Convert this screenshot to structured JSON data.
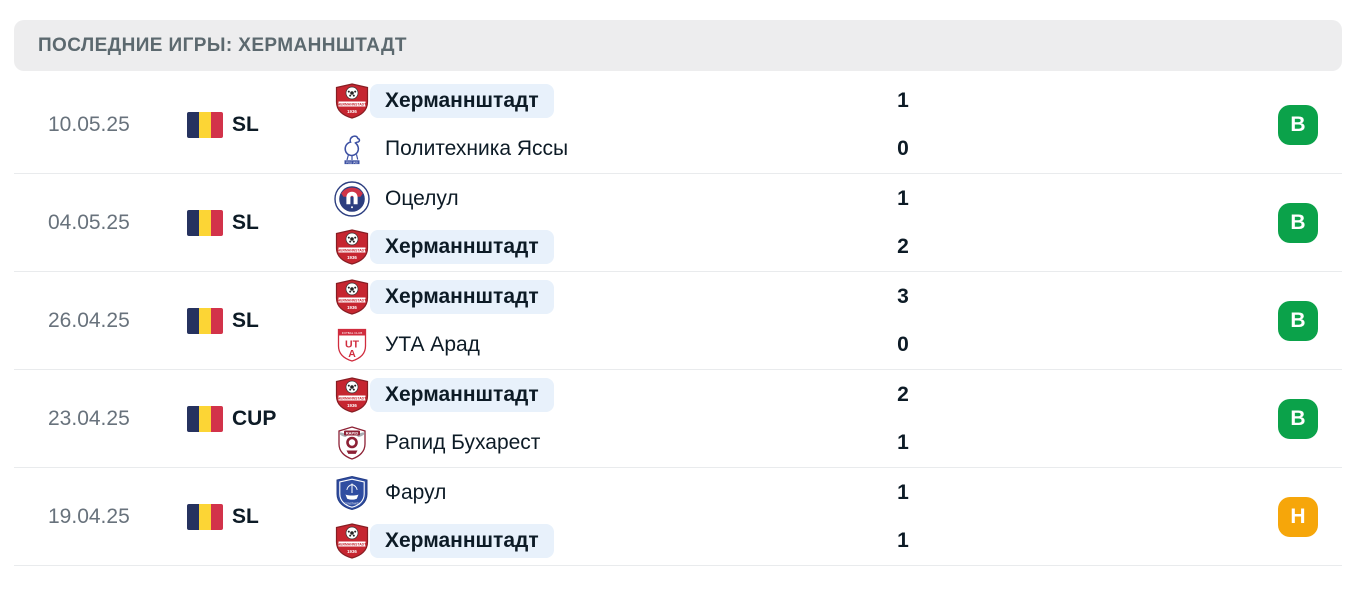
{
  "header": {
    "title": "ПОСЛЕДНИЕ ИГРЫ: ХЕРМАННШТАДТ"
  },
  "colors": {
    "win_badge": "#0ba24a",
    "draw_badge": "#f6a60a",
    "highlight_bg": "#e8f1fb",
    "header_bg": "#ededee",
    "flag_blue": "#26325f",
    "flag_yellow": "#fcd535",
    "flag_red": "#d2334a"
  },
  "matches": [
    {
      "date": "10.05.25",
      "competition": "SL",
      "competition_flag": "romania-flag",
      "home": {
        "name": "Херманнштадт",
        "logo": "hermannstadt",
        "highlighted": true
      },
      "away": {
        "name": "Политехника Яссы",
        "logo": "poli-iasi",
        "highlighted": false
      },
      "home_score": "1",
      "away_score": "0",
      "result": {
        "label": "В",
        "type": "win"
      }
    },
    {
      "date": "04.05.25",
      "competition": "SL",
      "competition_flag": "romania-flag",
      "home": {
        "name": "Оцелул",
        "logo": "otelul",
        "highlighted": false
      },
      "away": {
        "name": "Херманнштадт",
        "logo": "hermannstadt",
        "highlighted": true
      },
      "home_score": "1",
      "away_score": "2",
      "result": {
        "label": "В",
        "type": "win"
      }
    },
    {
      "date": "26.04.25",
      "competition": "SL",
      "competition_flag": "romania-flag",
      "home": {
        "name": "Херманнштадт",
        "logo": "hermannstadt",
        "highlighted": true
      },
      "away": {
        "name": "УТА Арад",
        "logo": "uta-arad",
        "highlighted": false
      },
      "home_score": "3",
      "away_score": "0",
      "result": {
        "label": "В",
        "type": "win"
      }
    },
    {
      "date": "23.04.25",
      "competition": "CUP",
      "competition_flag": "romania-flag",
      "home": {
        "name": "Херманнштадт",
        "logo": "hermannstadt",
        "highlighted": true
      },
      "away": {
        "name": "Рапид Бухарест",
        "logo": "rapid-bucharest",
        "highlighted": false
      },
      "home_score": "2",
      "away_score": "1",
      "result": {
        "label": "В",
        "type": "win"
      }
    },
    {
      "date": "19.04.25",
      "competition": "SL",
      "competition_flag": "romania-flag",
      "home": {
        "name": "Фарул",
        "logo": "farul",
        "highlighted": false
      },
      "away": {
        "name": "Херманнштадт",
        "logo": "hermannstadt",
        "highlighted": true
      },
      "home_score": "1",
      "away_score": "1",
      "result": {
        "label": "Н",
        "type": "draw"
      }
    }
  ]
}
